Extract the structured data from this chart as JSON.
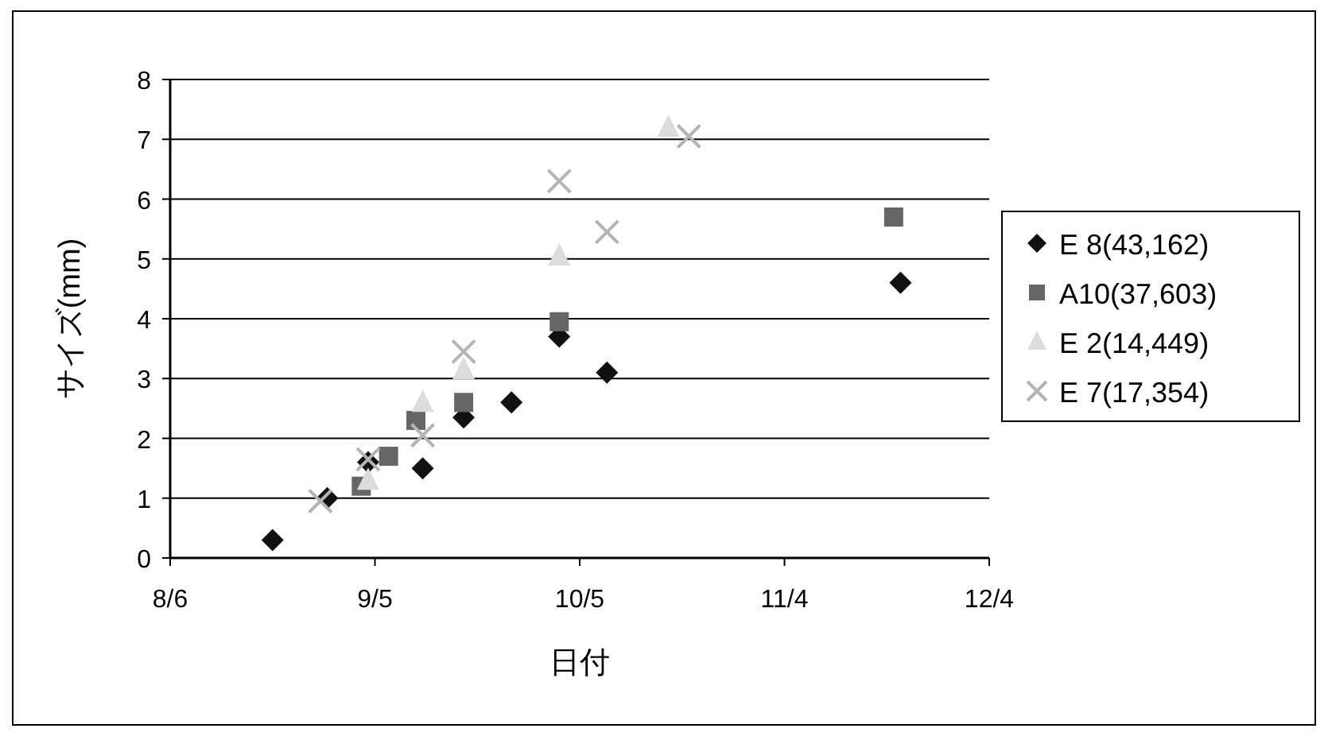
{
  "chart_data": {
    "type": "scatter",
    "xlabel": "日付",
    "ylabel": "サイズ(mm)",
    "xlim": [
      "--08-06",
      "--12-04"
    ],
    "xticks": [
      {
        "value": "--08-06",
        "label": "8/6"
      },
      {
        "value": "--09-05",
        "label": "9/5"
      },
      {
        "value": "--10-05",
        "label": "10/5"
      },
      {
        "value": "--11-04",
        "label": "11/4"
      },
      {
        "value": "--12-04",
        "label": "12/4"
      }
    ],
    "ylim": [
      0,
      8
    ],
    "yticks": [
      0,
      1,
      2,
      3,
      4,
      5,
      6,
      7,
      8
    ],
    "grid": "y",
    "legend": "right",
    "series": [
      {
        "name": "E 8(43,162)",
        "color": "#111111",
        "marker": "diamond",
        "x": [
          "--08-21",
          "--08-29",
          "--09-04",
          "--09-12",
          "--09-18",
          "--09-25",
          "--10-02",
          "--10-09",
          "--11-21"
        ],
        "values": [
          0.3,
          1.0,
          1.6,
          1.5,
          2.35,
          2.6,
          3.7,
          3.1,
          4.6
        ]
      },
      {
        "name": "A10(37,603)",
        "color": "#666666",
        "marker": "square",
        "x": [
          "--09-03",
          "--09-07",
          "--09-11",
          "--09-18",
          "--10-02",
          "--11-20"
        ],
        "values": [
          1.2,
          1.7,
          2.3,
          2.6,
          3.95,
          5.7
        ]
      },
      {
        "name": "E 2(14,449)",
        "color": "#dcdcdc",
        "marker": "triangle",
        "x": [
          "--09-04",
          "--09-12",
          "--09-18",
          "--10-02",
          "--10-18"
        ],
        "values": [
          1.3,
          2.6,
          3.15,
          5.05,
          7.2
        ]
      },
      {
        "name": "E 7(17,354)",
        "color": "#b4b4b4",
        "marker": "cross",
        "x": [
          "--08-28",
          "--09-04",
          "--09-12",
          "--09-18",
          "--10-02",
          "--10-09",
          "--10-21"
        ],
        "values": [
          0.95,
          1.65,
          2.05,
          3.45,
          6.3,
          5.45,
          7.05
        ]
      }
    ]
  }
}
